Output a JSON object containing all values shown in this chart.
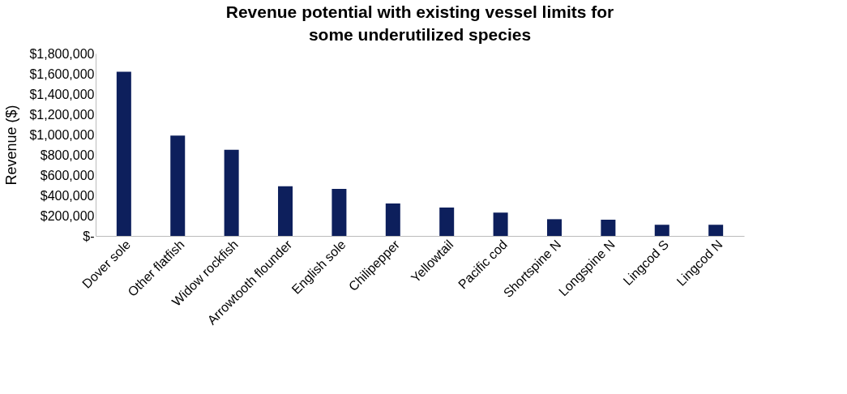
{
  "chart_data": {
    "type": "bar",
    "title": "Revenue potential with existing vessel limits for some underutilized species",
    "ylabel": "Revenue ($)",
    "categories": [
      "Dover sole",
      "Other flatfish",
      "Widow rockfish",
      "Arrowtooth flounder",
      "English sole",
      "Chilipepper",
      "Yellowtail",
      "Pacific cod",
      "Shortspine N",
      "Longspine N",
      "Lingcod S",
      "Lingcod N"
    ],
    "values": [
      1620000,
      990000,
      850000,
      490000,
      465000,
      320000,
      280000,
      230000,
      165000,
      160000,
      110000,
      110000
    ],
    "color": "#0d1f5c",
    "ylim": [
      0,
      1800000
    ],
    "yticks": [
      {
        "value": 0,
        "label": "$-"
      },
      {
        "value": 200000,
        "label": "$200,000"
      },
      {
        "value": 400000,
        "label": "$400,000"
      },
      {
        "value": 600000,
        "label": "$600,000"
      },
      {
        "value": 800000,
        "label": "$800,000"
      },
      {
        "value": 1000000,
        "label": "$1,000,000"
      },
      {
        "value": 1200000,
        "label": "$1,200,000"
      },
      {
        "value": 1400000,
        "label": "$1,400,000"
      },
      {
        "value": 1600000,
        "label": "$1,600,000"
      },
      {
        "value": 1800000,
        "label": "$1,800,000"
      }
    ],
    "grid": false
  }
}
